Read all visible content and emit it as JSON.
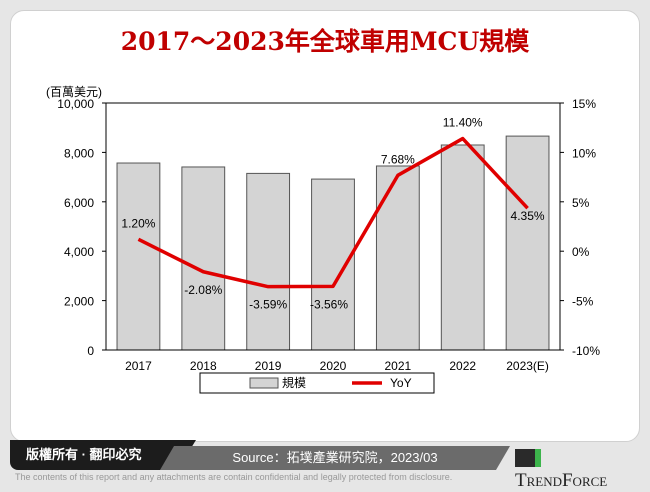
{
  "title": "2017～2023年全球車用MCU規模",
  "footer": {
    "copyright": "版權所有 · 翻印必究",
    "source": "Source：拓墣產業研究院，2023/03",
    "brand": "TrendForce",
    "disclaimer": "The contents of this report and any attachments are contain confidential and legally protected from disclosure."
  },
  "chart_data": {
    "type": "bar+line",
    "title": "2017～2023年全球車用MCU規模",
    "ylabel": "(百萬美元)",
    "categories": [
      "2017",
      "2018",
      "2019",
      "2020",
      "2021",
      "2022",
      "2023(E)"
    ],
    "series": [
      {
        "name": "規模",
        "type": "bar",
        "axis": "left",
        "values": [
          7570,
          7410,
          7150,
          6920,
          7450,
          8300,
          8660
        ],
        "color": "#d4d4d4"
      },
      {
        "name": "YoY",
        "type": "line",
        "axis": "right",
        "values": [
          1.2,
          -2.08,
          -3.59,
          -3.56,
          7.68,
          11.4,
          4.35
        ],
        "labels": [
          "1.20%",
          "-2.08%",
          "-3.59%",
          "-3.56%",
          "7.68%",
          "11.40%",
          "4.35%"
        ],
        "color": "#e00000"
      }
    ],
    "ylim": [
      0,
      10000
    ],
    "yticks": [
      "0",
      "2,000",
      "4,000",
      "6,000",
      "8,000",
      "10,000"
    ],
    "y2lim": [
      -10,
      15
    ],
    "y2ticks": [
      "-10%",
      "-5%",
      "0%",
      "5%",
      "10%",
      "15%"
    ],
    "legend": "bottom"
  }
}
